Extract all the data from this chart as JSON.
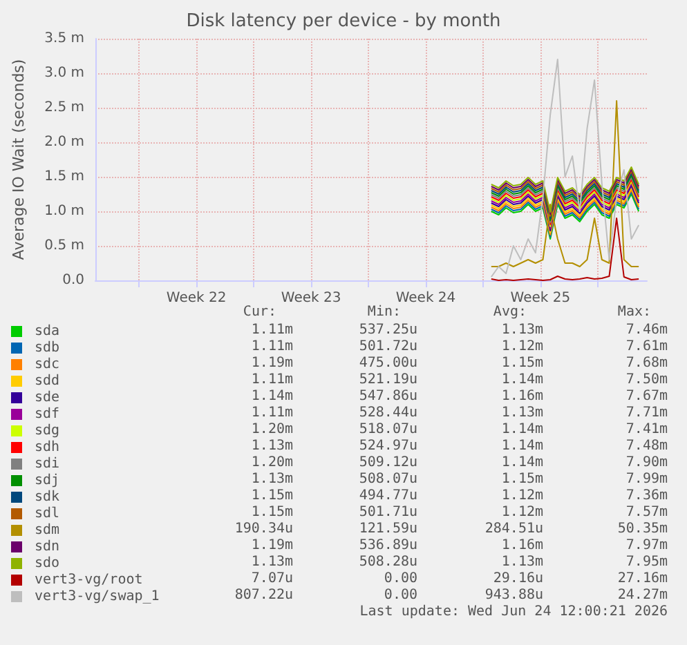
{
  "chart_data": {
    "type": "line",
    "title": "Disk latency per device - by month",
    "ylabel": "Average IO Wait (seconds)",
    "x": [
      "2026-06-15T12:00",
      "2026-06-15T22:48",
      "2026-06-16T09:36",
      "2026-06-16T20:24",
      "2026-06-17T07:12",
      "2026-06-17T18:00",
      "2026-06-18T04:48",
      "2026-06-18T15:36",
      "2026-06-19T02:24",
      "2026-06-19T13:12",
      "2026-06-20T00:00",
      "2026-06-20T10:48",
      "2026-06-20T21:36",
      "2026-06-21T08:24",
      "2026-06-21T19:12",
      "2026-06-22T06:00",
      "2026-06-22T16:48",
      "2026-06-23T03:36",
      "2026-06-23T14:24",
      "2026-06-24T01:12",
      "2026-06-24T12:00"
    ],
    "xlim": [
      "2026-05-22T08:00",
      "2026-06-25T00:00"
    ],
    "xticks": [
      {
        "value": "2026-05-25",
        "label": null
      },
      {
        "value": "2026-05-28T12:00",
        "label": "Week 22"
      },
      {
        "value": "2026-06-01",
        "label": null
      },
      {
        "value": "2026-06-04T12:00",
        "label": "Week 23"
      },
      {
        "value": "2026-06-08",
        "label": null
      },
      {
        "value": "2026-06-11T12:00",
        "label": "Week 24"
      },
      {
        "value": "2026-06-15",
        "label": null
      },
      {
        "value": "2026-06-18T12:00",
        "label": "Week 25"
      },
      {
        "value": "2026-06-22",
        "label": null
      }
    ],
    "ylim": [
      0,
      3.5
    ],
    "yticks": [
      {
        "value": 0,
        "label": "0.0"
      },
      {
        "value": 0.5,
        "label": "0.5 m"
      },
      {
        "value": 1,
        "label": "1.0 m"
      },
      {
        "value": 1.5,
        "label": "1.5 m"
      },
      {
        "value": 2,
        "label": "2.0 m"
      },
      {
        "value": 2.5,
        "label": "2.5 m"
      },
      {
        "value": 3,
        "label": "3.0 m"
      },
      {
        "value": 3.5,
        "label": "3.5 m"
      }
    ],
    "grid": true,
    "legend": "bottom left",
    "marker": "none",
    "line_style": "solid",
    "series": [
      {
        "name": "sda",
        "color": "#00cc00",
        "values": [
          1.0,
          0.95,
          1.05,
          0.98,
          1.0,
          1.1,
          1.0,
          1.05,
          0.6,
          1.1,
          0.9,
          0.95,
          0.85,
          1.0,
          1.1,
          0.95,
          0.9,
          1.1,
          1.05,
          1.25,
          1.0
        ]
      },
      {
        "name": "sdb",
        "color": "#0066b3",
        "values": [
          1.03,
          0.98,
          1.08,
          1.01,
          1.03,
          1.13,
          1.03,
          1.08,
          0.63,
          1.13,
          0.93,
          0.98,
          0.88,
          1.03,
          1.13,
          0.98,
          0.93,
          1.13,
          1.08,
          1.28,
          1.03
        ]
      },
      {
        "name": "sdc",
        "color": "#ff8000",
        "values": [
          1.06,
          1.01,
          1.11,
          1.04,
          1.06,
          1.16,
          1.06,
          1.11,
          0.66,
          1.16,
          0.96,
          1.01,
          0.91,
          1.06,
          1.16,
          1.01,
          0.96,
          1.16,
          1.11,
          1.31,
          1.06
        ]
      },
      {
        "name": "sdd",
        "color": "#ffcc00",
        "values": [
          1.09,
          1.04,
          1.14,
          1.07,
          1.09,
          1.19,
          1.09,
          1.14,
          0.69,
          1.19,
          0.99,
          1.04,
          0.94,
          1.09,
          1.19,
          1.04,
          0.99,
          1.19,
          1.14,
          1.34,
          1.09
        ]
      },
      {
        "name": "sde",
        "color": "#330099",
        "values": [
          1.12,
          1.07,
          1.17,
          1.1,
          1.12,
          1.22,
          1.12,
          1.17,
          0.72,
          1.22,
          1.02,
          1.07,
          0.97,
          1.12,
          1.22,
          1.07,
          1.02,
          1.22,
          1.17,
          1.37,
          1.12
        ]
      },
      {
        "name": "sdf",
        "color": "#990099",
        "values": [
          1.15,
          1.1,
          1.2,
          1.13,
          1.15,
          1.25,
          1.15,
          1.2,
          0.75,
          1.25,
          1.05,
          1.1,
          1.0,
          1.15,
          1.25,
          1.1,
          1.05,
          1.25,
          1.2,
          1.4,
          1.15
        ]
      },
      {
        "name": "sdg",
        "color": "#ccff00",
        "values": [
          1.18,
          1.13,
          1.23,
          1.16,
          1.18,
          1.28,
          1.18,
          1.23,
          0.78,
          1.28,
          1.08,
          1.13,
          1.03,
          1.18,
          1.28,
          1.13,
          1.08,
          1.28,
          1.23,
          1.43,
          1.18
        ]
      },
      {
        "name": "sdh",
        "color": "#ff0000",
        "values": [
          1.21,
          1.16,
          1.26,
          1.19,
          1.21,
          1.31,
          1.21,
          1.26,
          0.81,
          1.31,
          1.11,
          1.16,
          1.06,
          1.21,
          1.31,
          1.16,
          1.11,
          1.31,
          1.26,
          1.46,
          1.21
        ]
      },
      {
        "name": "sdi",
        "color": "#808080",
        "values": [
          1.24,
          1.19,
          1.29,
          1.22,
          1.24,
          1.34,
          1.24,
          1.29,
          0.84,
          1.34,
          1.14,
          1.19,
          1.09,
          1.24,
          1.34,
          1.19,
          1.14,
          1.34,
          1.29,
          1.49,
          1.24
        ]
      },
      {
        "name": "sdj",
        "color": "#008f00",
        "values": [
          1.27,
          1.22,
          1.32,
          1.25,
          1.27,
          1.37,
          1.27,
          1.32,
          0.87,
          1.37,
          1.17,
          1.22,
          1.12,
          1.27,
          1.37,
          1.22,
          1.17,
          1.37,
          1.32,
          1.52,
          1.27
        ]
      },
      {
        "name": "sdk",
        "color": "#00487d",
        "values": [
          1.3,
          1.25,
          1.35,
          1.28,
          1.3,
          1.4,
          1.3,
          1.35,
          0.9,
          1.4,
          1.2,
          1.25,
          1.15,
          1.3,
          1.4,
          1.25,
          1.2,
          1.4,
          1.35,
          1.55,
          1.3
        ]
      },
      {
        "name": "sdl",
        "color": "#b35a00",
        "values": [
          1.33,
          1.28,
          1.38,
          1.31,
          1.33,
          1.43,
          1.33,
          1.38,
          0.93,
          1.43,
          1.23,
          1.28,
          1.18,
          1.33,
          1.43,
          1.28,
          1.23,
          1.43,
          1.38,
          1.58,
          1.33
        ]
      },
      {
        "name": "sdm",
        "color": "#b38f00",
        "values": [
          0.2,
          0.2,
          0.25,
          0.2,
          0.25,
          0.3,
          0.25,
          0.3,
          1.1,
          0.6,
          0.25,
          0.25,
          0.2,
          0.3,
          0.9,
          0.3,
          0.25,
          2.6,
          0.3,
          0.2,
          0.2
        ]
      },
      {
        "name": "sdn",
        "color": "#6b006b",
        "values": [
          1.36,
          1.31,
          1.41,
          1.34,
          1.36,
          1.46,
          1.36,
          1.41,
          0.96,
          1.46,
          1.26,
          1.31,
          1.21,
          1.36,
          1.46,
          1.31,
          1.26,
          1.46,
          1.41,
          1.61,
          1.36
        ]
      },
      {
        "name": "sdo",
        "color": "#8fb300",
        "values": [
          1.39,
          1.34,
          1.44,
          1.37,
          1.39,
          1.49,
          1.39,
          1.44,
          0.99,
          1.49,
          1.29,
          1.34,
          1.24,
          1.39,
          1.49,
          1.34,
          1.29,
          1.49,
          1.44,
          1.64,
          1.39
        ]
      },
      {
        "name": "vert3-vg/root",
        "color": "#b30000",
        "values": [
          0.02,
          0.0,
          0.01,
          0.0,
          0.01,
          0.02,
          0.01,
          0.0,
          0.01,
          0.06,
          0.02,
          0.01,
          0.02,
          0.04,
          0.02,
          0.03,
          0.06,
          0.9,
          0.05,
          0.01,
          0.02
        ]
      },
      {
        "name": "vert3-vg/swap_1",
        "color": "#bebebe",
        "values": [
          0.05,
          0.2,
          0.1,
          0.5,
          0.3,
          0.6,
          0.4,
          1.2,
          2.4,
          3.2,
          1.5,
          1.8,
          1.0,
          2.2,
          2.9,
          1.4,
          0.3,
          1.2,
          1.6,
          0.6,
          0.8
        ]
      }
    ],
    "annotations": [
      "Cur:",
      "Min:",
      "Avg:",
      "Max:",
      "1.11m",
      "537.25u",
      "1.13m",
      "7.46m",
      "1.11m",
      "501.72u",
      "1.12m",
      "7.61m",
      "1.19m",
      "475.00u",
      "1.15m",
      "7.68m",
      "1.11m",
      "521.19u",
      "1.14m",
      "7.50m",
      "1.14m",
      "547.86u",
      "1.16m",
      "7.67m",
      "1.11m",
      "528.44u",
      "1.13m",
      "7.71m",
      "1.20m",
      "518.07u",
      "1.14m",
      "7.41m",
      "1.13m",
      "524.97u",
      "1.14m",
      "7.48m",
      "1.20m",
      "509.12u",
      "1.14m",
      "7.90m",
      "1.13m",
      "508.07u",
      "1.15m",
      "7.99m",
      "1.15m",
      "494.77u",
      "1.12m",
      "7.36m",
      "1.15m",
      "501.71u",
      "1.12m",
      "7.57m",
      "190.34u",
      "121.59u",
      "284.51u",
      "50.35m",
      "1.19m",
      "536.89u",
      "1.16m",
      "7.97m",
      "1.13m",
      "508.28u",
      "1.13m",
      "7.95m",
      "7.07u",
      "0.00",
      "29.16u",
      "27.16m",
      "807.22u",
      "0.00",
      "943.88u",
      "24.27m",
      "Last update: Wed Jun 24 12:00:21 2026"
    ]
  }
}
